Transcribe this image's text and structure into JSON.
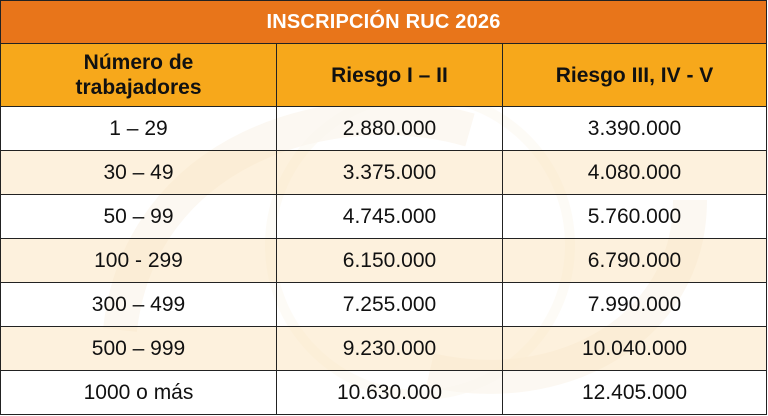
{
  "table": {
    "title": "INSCRIPCIÓN RUC 2026",
    "headers": {
      "col1_line1": "Número de",
      "col1_line2": "trabajadores",
      "col2": "Riesgo I – II",
      "col3": "Riesgo III, IV - V"
    },
    "rows": [
      {
        "workers": "1 – 29",
        "risk_1_2": "2.880.000",
        "risk_3_5": "3.390.000"
      },
      {
        "workers": "30 – 49",
        "risk_1_2": "3.375.000",
        "risk_3_5": "4.080.000"
      },
      {
        "workers": "50 – 99",
        "risk_1_2": "4.745.000",
        "risk_3_5": "5.760.000"
      },
      {
        "workers": "100 - 299",
        "risk_1_2": "6.150.000",
        "risk_3_5": "6.790.000"
      },
      {
        "workers": "300 – 499",
        "risk_1_2": "7.255.000",
        "risk_3_5": "7.990.000"
      },
      {
        "workers": "500 – 999",
        "risk_1_2": "9.230.000",
        "risk_3_5": "10.040.000"
      },
      {
        "workers": "1000 o más",
        "risk_1_2": "10.630.000",
        "risk_3_5": "12.405.000"
      }
    ]
  },
  "colors": {
    "title_bg": "#e8751a",
    "header_bg": "#f7a81b",
    "stripe_bg": "#fcecd2",
    "border": "#222222"
  }
}
